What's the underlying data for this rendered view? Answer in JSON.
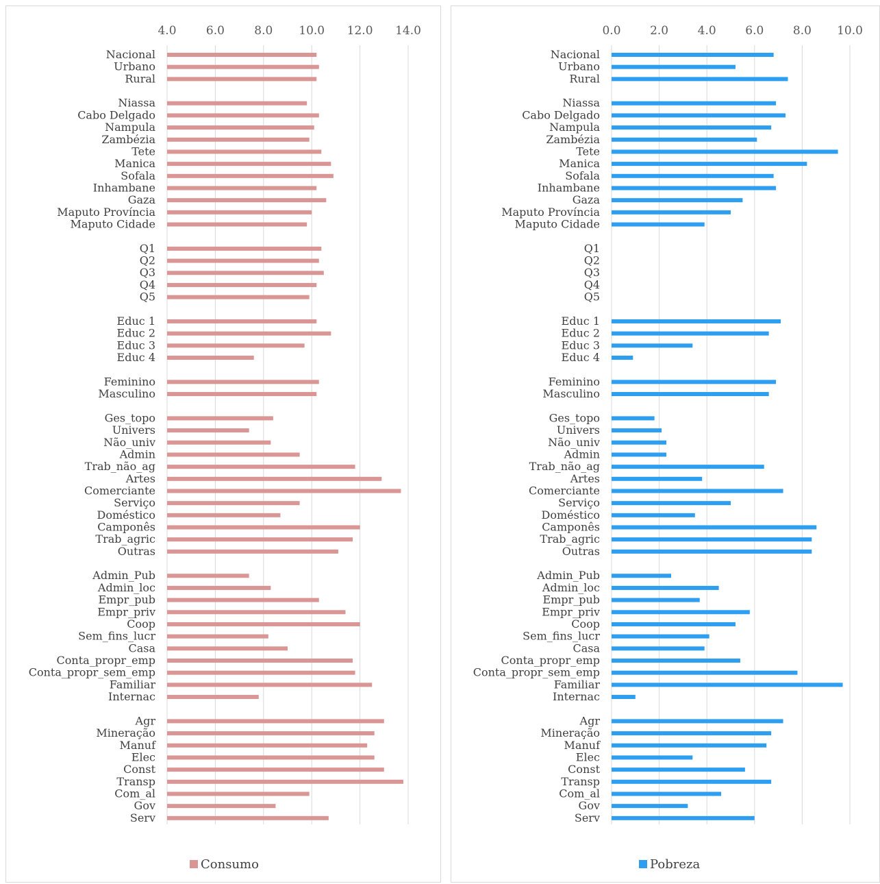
{
  "chart_data": [
    {
      "type": "bar",
      "orientation": "horizontal",
      "categories": [
        "Nacional",
        "Urbano",
        "Rural",
        "",
        "Niassa",
        "Cabo Delgado",
        "Nampula",
        "Zambézia",
        "Tete",
        "Manica",
        "Sofala",
        "Inhambane",
        "Gaza",
        "Maputo Província",
        "Maputo Cidade",
        "",
        "Q1",
        "Q2",
        "Q3",
        "Q4",
        "Q5",
        "",
        "Educ 1",
        "Educ 2",
        "Educ 3",
        "Educ 4",
        "",
        "Feminino",
        "Masculino",
        "",
        "Ges_topo",
        "Univers",
        "Não_univ",
        "Admin",
        "Trab_não_ag",
        "Artes",
        "Comerciante",
        "Serviço",
        "Doméstico",
        "Camponês",
        "Trab_agric",
        "Outras",
        "",
        "Admin_Pub",
        "Admin_loc",
        "Empr_pub",
        "Empr_priv",
        "Coop",
        "Sem_fins_lucr",
        "Casa",
        "Conta_propr_emp",
        "Conta_propr_sem_emp",
        "Familiar",
        "Internac",
        "",
        "Agr",
        "Mineração",
        "Manuf",
        "Elec",
        "Const",
        "Transp",
        "Com_al",
        "Gov",
        "Serv"
      ],
      "series": [
        {
          "name": "Consumo",
          "color": "#d99694",
          "values": [
            10.2,
            10.3,
            10.2,
            null,
            9.8,
            10.3,
            10.1,
            9.9,
            10.4,
            10.8,
            10.9,
            10.2,
            10.6,
            10.0,
            9.8,
            null,
            10.4,
            10.3,
            10.5,
            10.2,
            9.9,
            null,
            10.2,
            10.8,
            9.7,
            7.6,
            null,
            10.3,
            10.2,
            null,
            8.4,
            7.4,
            8.3,
            9.5,
            11.8,
            12.9,
            13.7,
            9.5,
            8.7,
            12.0,
            11.7,
            11.1,
            null,
            7.4,
            8.3,
            10.3,
            11.4,
            12.0,
            8.2,
            9.0,
            11.7,
            11.8,
            12.5,
            7.8,
            null,
            13.0,
            12.6,
            12.3,
            12.6,
            13.0,
            13.8,
            9.9,
            8.5,
            10.7
          ]
        }
      ],
      "xlim": [
        4,
        14
      ],
      "xticks": [
        "4.0",
        "6.0",
        "8.0",
        "10.0",
        "12.0",
        "14.0"
      ],
      "grid": true,
      "legend": "bottom"
    },
    {
      "type": "bar",
      "orientation": "horizontal",
      "categories": [
        "Nacional",
        "Urbano",
        "Rural",
        "",
        "Niassa",
        "Cabo Delgado",
        "Nampula",
        "Zambézia",
        "Tete",
        "Manica",
        "Sofala",
        "Inhambane",
        "Gaza",
        "Maputo Província",
        "Maputo Cidade",
        "",
        "Q1",
        "Q2",
        "Q3",
        "Q4",
        "Q5",
        "",
        "Educ 1",
        "Educ 2",
        "Educ 3",
        "Educ 4",
        "",
        "Feminino",
        "Masculino",
        "",
        "Ges_topo",
        "Univers",
        "Não_univ",
        "Admin",
        "Trab_não_ag",
        "Artes",
        "Comerciante",
        "Serviço",
        "Doméstico",
        "Camponês",
        "Trab_agric",
        "Outras",
        "",
        "Admin_Pub",
        "Admin_loc",
        "Empr_pub",
        "Empr_priv",
        "Coop",
        "Sem_fins_lucr",
        "Casa",
        "Conta_propr_emp",
        "Conta_propr_sem_emp",
        "Familiar",
        "Internac",
        "",
        "Agr",
        "Mineração",
        "Manuf",
        "Elec",
        "Const",
        "Transp",
        "Com_al",
        "Gov",
        "Serv"
      ],
      "series": [
        {
          "name": "Pobreza",
          "color": "#2e9ff0",
          "values": [
            6.8,
            5.2,
            7.4,
            null,
            6.9,
            7.3,
            6.7,
            6.1,
            9.5,
            8.2,
            6.8,
            6.9,
            5.5,
            5.0,
            3.9,
            null,
            null,
            null,
            null,
            null,
            null,
            null,
            7.1,
            6.6,
            3.4,
            0.9,
            null,
            6.9,
            6.6,
            null,
            1.8,
            2.1,
            2.3,
            2.3,
            6.4,
            3.8,
            7.2,
            5.0,
            3.5,
            8.6,
            8.4,
            8.4,
            null,
            2.5,
            4.5,
            3.7,
            5.8,
            5.2,
            4.1,
            3.9,
            5.4,
            7.8,
            9.7,
            1.0,
            null,
            7.2,
            6.7,
            6.5,
            3.4,
            5.6,
            6.7,
            4.6,
            3.2,
            6.0
          ]
        }
      ],
      "xlim": [
        0,
        10
      ],
      "xticks": [
        "0.0",
        "2.0",
        "4.0",
        "6.0",
        "8.0",
        "10.0"
      ],
      "grid": true,
      "legend": "bottom"
    }
  ]
}
